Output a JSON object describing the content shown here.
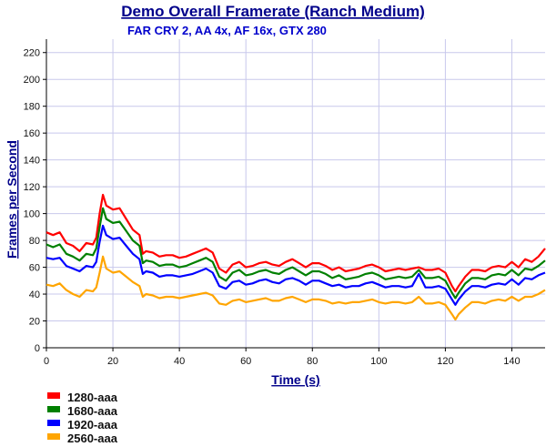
{
  "chart_data": {
    "type": "line",
    "title": "Demo Overall Framerate (Ranch Medium)",
    "subtitle": "FAR CRY 2, AA 4x, AF 16x,  GTX 280",
    "xlabel": "Time (s)",
    "ylabel": "Frames per Second",
    "xlim": [
      0,
      150
    ],
    "ylim": [
      0,
      230
    ],
    "x_ticks": [
      0,
      20,
      40,
      60,
      80,
      100,
      120,
      140
    ],
    "y_ticks": [
      0,
      20,
      40,
      60,
      80,
      100,
      120,
      140,
      160,
      180,
      200,
      220
    ],
    "grid": true,
    "legend_position": "bottom-left",
    "x": [
      0,
      2,
      4,
      6,
      8,
      10,
      12,
      14,
      15,
      16,
      17,
      18,
      20,
      22,
      24,
      26,
      28,
      29,
      30,
      32,
      34,
      36,
      38,
      40,
      42,
      44,
      46,
      48,
      50,
      52,
      54,
      56,
      58,
      60,
      62,
      64,
      66,
      68,
      70,
      72,
      74,
      76,
      78,
      80,
      82,
      84,
      86,
      88,
      90,
      92,
      94,
      96,
      98,
      100,
      102,
      104,
      106,
      108,
      110,
      112,
      114,
      116,
      118,
      120,
      122,
      123,
      124,
      126,
      128,
      130,
      132,
      134,
      136,
      138,
      140,
      142,
      144,
      146,
      148,
      150
    ],
    "series": [
      {
        "name": "1280-aaa",
        "color": "#ff0000",
        "values": [
          86,
          84,
          86,
          78,
          76,
          72,
          78,
          77,
          82,
          100,
          114,
          106,
          103,
          104,
          96,
          88,
          84,
          70,
          72,
          71,
          68,
          69,
          69,
          67,
          68,
          70,
          72,
          74,
          71,
          59,
          56,
          62,
          64,
          60,
          61,
          63,
          64,
          62,
          61,
          64,
          66,
          63,
          60,
          63,
          63,
          61,
          58,
          60,
          57,
          58,
          59,
          61,
          62,
          60,
          57,
          58,
          59,
          58,
          59,
          60,
          58,
          58,
          59,
          56,
          46,
          42,
          46,
          53,
          58,
          58,
          57,
          60,
          61,
          60,
          64,
          60,
          66,
          64,
          68,
          74
        ]
      },
      {
        "name": "1680-aaa",
        "color": "#008000",
        "values": [
          77,
          75,
          77,
          70,
          68,
          65,
          70,
          69,
          74,
          90,
          104,
          96,
          93,
          94,
          87,
          80,
          76,
          63,
          65,
          64,
          61,
          62,
          62,
          60,
          61,
          63,
          65,
          67,
          64,
          53,
          50,
          56,
          58,
          54,
          55,
          57,
          58,
          56,
          55,
          58,
          60,
          57,
          54,
          57,
          57,
          55,
          52,
          54,
          51,
          52,
          53,
          55,
          56,
          54,
          51,
          52,
          53,
          52,
          53,
          58,
          52,
          52,
          53,
          50,
          41,
          37,
          41,
          48,
          52,
          52,
          51,
          54,
          55,
          54,
          58,
          54,
          59,
          58,
          61,
          65
        ]
      },
      {
        "name": "1920-aaa",
        "color": "#0000ff",
        "values": [
          67,
          66,
          67,
          61,
          59,
          57,
          61,
          60,
          64,
          79,
          91,
          84,
          81,
          82,
          76,
          70,
          66,
          55,
          57,
          56,
          53,
          54,
          54,
          53,
          54,
          55,
          57,
          59,
          56,
          46,
          44,
          49,
          50,
          47,
          48,
          50,
          51,
          49,
          48,
          51,
          52,
          50,
          47,
          50,
          50,
          48,
          46,
          47,
          45,
          46,
          46,
          48,
          49,
          47,
          45,
          46,
          46,
          45,
          46,
          55,
          45,
          45,
          46,
          44,
          36,
          32,
          36,
          42,
          46,
          46,
          45,
          47,
          48,
          47,
          51,
          47,
          52,
          51,
          54,
          56
        ]
      },
      {
        "name": "2560-aaa",
        "color": "#ffa500",
        "values": [
          47,
          46,
          48,
          43,
          40,
          38,
          43,
          42,
          45,
          56,
          68,
          59,
          56,
          57,
          53,
          49,
          46,
          38,
          40,
          39,
          37,
          38,
          38,
          37,
          38,
          39,
          40,
          41,
          39,
          33,
          32,
          35,
          36,
          34,
          35,
          36,
          37,
          35,
          35,
          37,
          38,
          36,
          34,
          36,
          36,
          35,
          33,
          34,
          33,
          34,
          34,
          35,
          36,
          34,
          33,
          34,
          34,
          33,
          34,
          38,
          33,
          33,
          34,
          32,
          25,
          21,
          25,
          30,
          34,
          34,
          33,
          35,
          36,
          35,
          38,
          35,
          38,
          38,
          40,
          43
        ]
      }
    ]
  }
}
